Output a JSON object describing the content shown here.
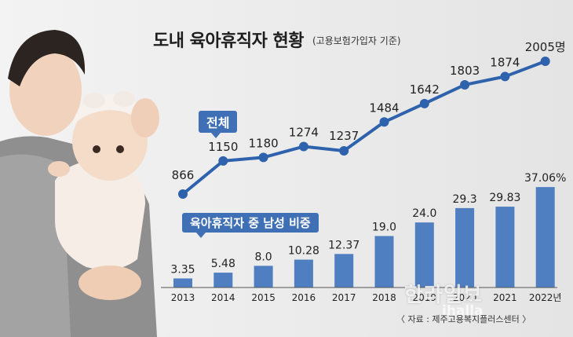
{
  "title": "도내 육아휴직자 현황",
  "subtitle": "(고용보험가입자 기준)",
  "source": "〈 자료 : 제주고용복지플러스센터 〉",
  "watermark": "한라일보",
  "watermark_sub": "ihalla",
  "colors": {
    "bar": "#4f7ec1",
    "line": "#2f62ac",
    "tag": "#3f6fb5",
    "background": "#e6e6e6"
  },
  "chart_data": [
    {
      "type": "line",
      "label": "전체",
      "categories": [
        "2013",
        "2014",
        "2015",
        "2016",
        "2017",
        "2018",
        "2019",
        "2020",
        "2021",
        "2022"
      ],
      "values": [
        866,
        1150,
        1180,
        1274,
        1237,
        1484,
        1642,
        1803,
        1874,
        2005
      ],
      "value_labels": [
        "866",
        "1150",
        "1180",
        "1274",
        "1237",
        "1484",
        "1642",
        "1803",
        "1874",
        "2005명"
      ],
      "ylim": [
        700,
        2100
      ]
    },
    {
      "type": "bar",
      "label": "육아휴직자 중 남성 비중",
      "categories": [
        "2013",
        "2014",
        "2015",
        "2016",
        "2017",
        "2018",
        "2019",
        "2020",
        "2021",
        "2022"
      ],
      "x_labels": [
        "2013",
        "2014",
        "2015",
        "2016",
        "2017",
        "2018",
        "2019",
        "2020",
        "2021",
        "2022년"
      ],
      "values": [
        3.35,
        5.48,
        8.0,
        10.28,
        12.37,
        19.0,
        24.0,
        29.3,
        29.83,
        37.06
      ],
      "value_labels": [
        "3.35",
        "5.48",
        "8.0",
        "10.28",
        "12.37",
        "19.0",
        "24.0",
        "29.3",
        "29.83",
        "37.06%"
      ],
      "ylim": [
        0,
        40
      ]
    }
  ]
}
